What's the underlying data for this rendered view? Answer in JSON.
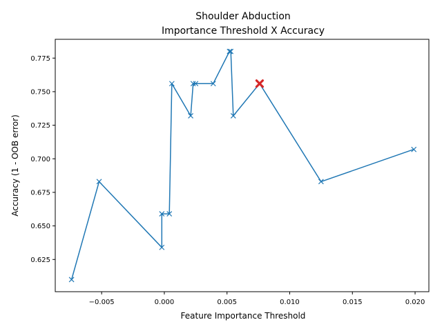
{
  "chart_data": {
    "type": "line",
    "title": "Shoulder Abduction\nImportance Threshold X Accuracy",
    "xlabel": "Feature Importance Threshold",
    "ylabel": "Accuracy (1 - OOB error)",
    "xlim": [
      -0.0087,
      0.0211
    ],
    "ylim": [
      0.601,
      0.789
    ],
    "xticks": [
      -0.005,
      0.0,
      0.005,
      0.01,
      0.015,
      0.02
    ],
    "xtick_labels": [
      "−0.005",
      "0.000",
      "0.005",
      "0.010",
      "0.015",
      "0.020"
    ],
    "yticks": [
      0.625,
      0.65,
      0.675,
      0.7,
      0.725,
      0.75,
      0.775
    ],
    "ytick_labels": [
      "0.625",
      "0.650",
      "0.675",
      "0.700",
      "0.725",
      "0.750",
      "0.775"
    ],
    "grid": false,
    "series": [
      {
        "marker": "x",
        "color": "#1f77b4",
        "x": [
          -0.0074,
          -0.0052,
          -0.0002,
          -0.0002,
          0.0004,
          0.0006,
          0.0021,
          0.0023,
          0.0025,
          0.0039,
          0.0052,
          0.0053,
          0.0055,
          0.0076,
          0.0125,
          0.0199
        ],
        "y": [
          0.61,
          0.683,
          0.634,
          0.659,
          0.659,
          0.756,
          0.732,
          0.756,
          0.756,
          0.756,
          0.78,
          0.78,
          0.732,
          0.756,
          0.683,
          0.707
        ]
      }
    ],
    "highlight": {
      "x": 0.0076,
      "y": 0.756,
      "marker": "X",
      "color": "#d62728"
    }
  }
}
